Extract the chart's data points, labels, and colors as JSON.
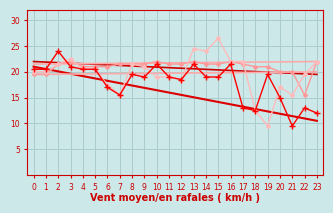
{
  "xlabel": "Vent moyen/en rafales ( km/h )",
  "xlim": [
    -0.5,
    23.5
  ],
  "ylim": [
    0,
    32
  ],
  "yticks": [
    5,
    10,
    15,
    20,
    25,
    30
  ],
  "xticks": [
    0,
    1,
    2,
    3,
    4,
    5,
    6,
    7,
    8,
    9,
    10,
    11,
    12,
    13,
    14,
    15,
    16,
    17,
    18,
    19,
    20,
    21,
    22,
    23
  ],
  "bg_color": "#cce8e8",
  "grid_color": "#aacccc",
  "series": [
    {
      "comment": "dark red diagonal line top - from ~22 to ~19",
      "x": [
        0,
        23
      ],
      "y": [
        22.0,
        19.5
      ],
      "color": "#cc0000",
      "lw": 1.2,
      "marker": null,
      "linestyle": "-",
      "zorder": 2
    },
    {
      "comment": "dark red diagonal line bottom - steep from ~21 to ~10",
      "x": [
        0,
        23
      ],
      "y": [
        21.0,
        10.5
      ],
      "color": "#dd0000",
      "lw": 1.5,
      "marker": null,
      "linestyle": "-",
      "zorder": 2
    },
    {
      "comment": "light pink nearly horizontal top ~21-22",
      "x": [
        0,
        23
      ],
      "y": [
        21.5,
        22.0
      ],
      "color": "#ffaaaa",
      "lw": 1.2,
      "marker": null,
      "linestyle": "-",
      "zorder": 2
    },
    {
      "comment": "light pink nearly horizontal bottom ~19-20",
      "x": [
        0,
        23
      ],
      "y": [
        19.5,
        20.0
      ],
      "color": "#ffaaaa",
      "lw": 1.2,
      "marker": null,
      "linestyle": "-",
      "zorder": 2
    },
    {
      "comment": "salmon/pink wavy line around 20-21 nearly flat",
      "x": [
        0,
        1,
        2,
        3,
        4,
        5,
        6,
        7,
        8,
        9,
        10,
        11,
        12,
        13,
        14,
        15,
        16,
        17,
        18,
        19,
        20,
        21,
        22,
        23
      ],
      "y": [
        19.5,
        19.5,
        21.5,
        22.0,
        21.0,
        21.0,
        21.0,
        21.5,
        21.5,
        21.5,
        22.0,
        21.5,
        21.5,
        22.0,
        21.5,
        21.5,
        22.0,
        21.5,
        21.0,
        21.0,
        20.0,
        20.0,
        15.5,
        22.0
      ],
      "color": "#ff9999",
      "lw": 1.0,
      "marker": "D",
      "ms": 2.0,
      "linestyle": "-",
      "zorder": 3
    },
    {
      "comment": "light pink wiggly line with bigger swings",
      "x": [
        0,
        1,
        2,
        3,
        4,
        5,
        6,
        7,
        8,
        9,
        10,
        11,
        12,
        13,
        14,
        15,
        16,
        17,
        18,
        19,
        20,
        21,
        22,
        23
      ],
      "y": [
        20.0,
        20.0,
        21.5,
        22.5,
        20.5,
        20.5,
        17.5,
        15.5,
        21.5,
        21.0,
        19.0,
        19.0,
        18.5,
        24.5,
        24.0,
        26.5,
        22.0,
        22.0,
        12.5,
        9.5,
        17.0,
        15.5,
        19.5,
        22.0
      ],
      "color": "#ffbbbb",
      "lw": 1.0,
      "marker": "D",
      "ms": 2.0,
      "linestyle": "-",
      "zorder": 3
    },
    {
      "comment": "bright red main wind line with + markers",
      "x": [
        0,
        1,
        2,
        3,
        4,
        5,
        6,
        7,
        8,
        9,
        10,
        11,
        12,
        13,
        14,
        15,
        16,
        17,
        18,
        19,
        20,
        21,
        22,
        23
      ],
      "y": [
        20.5,
        20.5,
        24.0,
        21.0,
        20.5,
        20.5,
        17.0,
        15.5,
        19.5,
        19.0,
        21.5,
        19.0,
        18.5,
        21.5,
        19.0,
        19.0,
        21.5,
        13.0,
        12.5,
        19.5,
        15.0,
        9.5,
        13.0,
        12.0
      ],
      "color": "#ff0000",
      "lw": 1.0,
      "marker": "+",
      "ms": 5,
      "linestyle": "-",
      "zorder": 4
    }
  ],
  "tick_label_color": "#cc0000",
  "tick_label_fontsize": 5.5,
  "xlabel_fontsize": 7,
  "xlabel_color": "#cc0000",
  "xlabel_bold": true
}
